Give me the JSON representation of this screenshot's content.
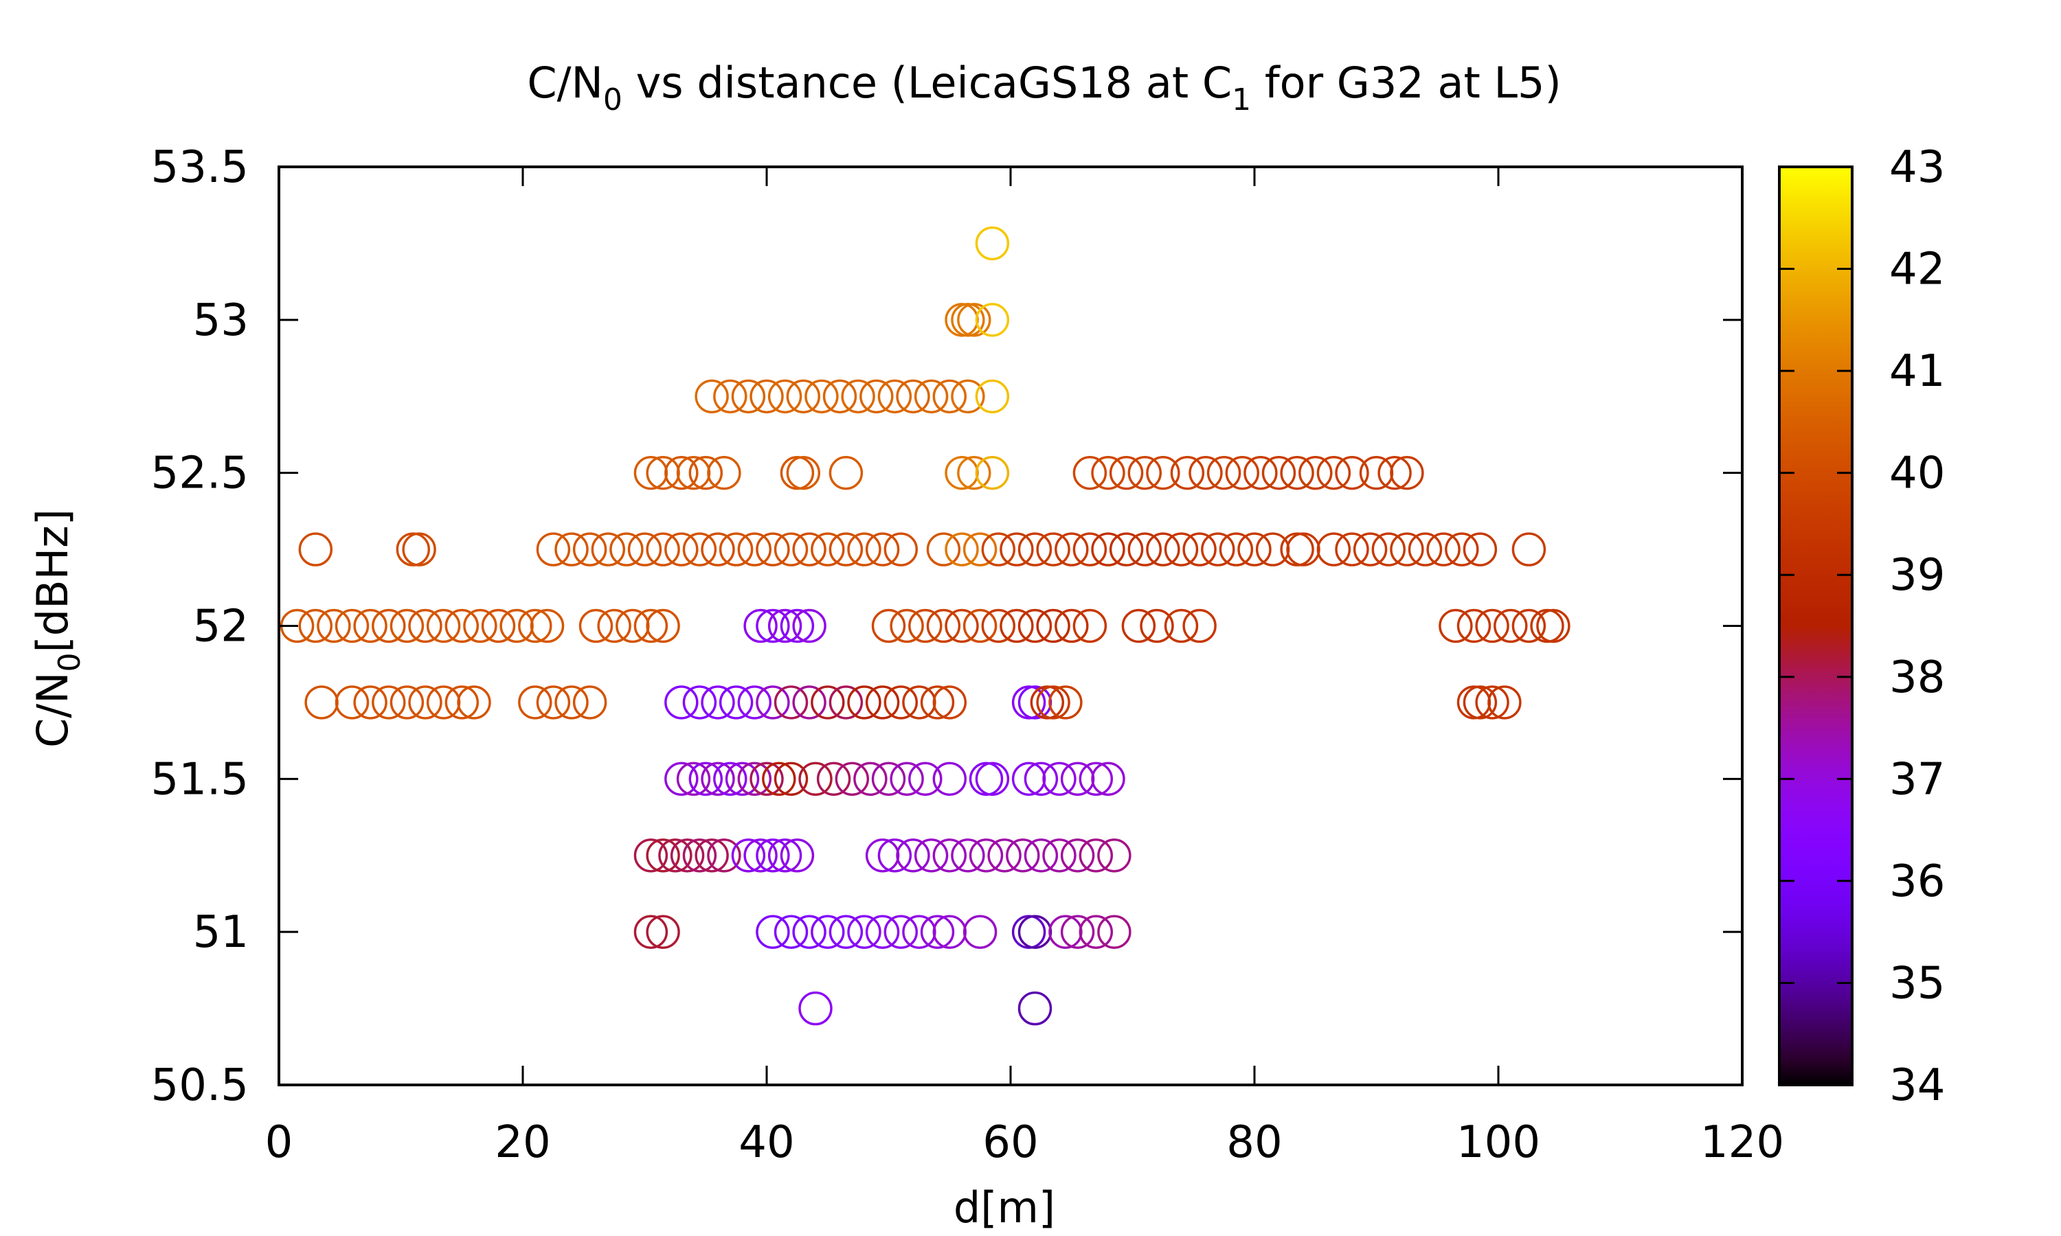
{
  "chart_data": {
    "type": "scatter",
    "title_parts": {
      "a": "C/N",
      "a_sub": "0",
      "b": " vs distance (LeicaGS18 at C",
      "b_sub": "1",
      "c": " for G32 at L5)"
    },
    "xlabel": "d[m]",
    "ylabel_parts": {
      "a": "C/N",
      "a_sub": "0",
      "b": "[dBHz]"
    },
    "xlim": [
      0,
      120
    ],
    "ylim": [
      50.5,
      53.5
    ],
    "xticks": [
      "0",
      "20",
      "40",
      "60",
      "80",
      "100",
      "120"
    ],
    "yticks": [
      "50.5",
      "51",
      "51.5",
      "52",
      "52.5",
      "53",
      "53.5"
    ],
    "colorbar": {
      "min": 34,
      "max": 43,
      "ticks": [
        "34",
        "35",
        "36",
        "37",
        "38",
        "39",
        "40",
        "41",
        "42",
        "43"
      ]
    },
    "colormap": "gnuplot-default",
    "marker": "open-circle",
    "grid": false,
    "legend": "none",
    "clusters": [
      {
        "y": 53.25,
        "x": [
          58.5
        ],
        "c": [
          42.3
        ]
      },
      {
        "y": 53.0,
        "x": [
          56.0,
          56.5,
          57.0,
          58.5
        ],
        "c": [
          41.0,
          41.0,
          41.0,
          42.3
        ]
      },
      {
        "y": 52.75,
        "x": [
          35.5,
          37.0,
          38.5,
          40.0,
          41.5,
          43.0,
          44.5,
          46.0,
          47.5,
          49.0,
          50.5,
          52.0,
          53.5,
          55.0,
          56.5,
          58.5
        ],
        "c": [
          40.7,
          40.7,
          40.6,
          40.6,
          40.7,
          40.6,
          40.7,
          40.6,
          40.7,
          40.6,
          40.7,
          40.6,
          40.7,
          40.7,
          40.8,
          42.2
        ]
      },
      {
        "y": 52.5,
        "x": [
          30.5,
          31.5,
          33.0,
          34.0,
          35.0,
          36.5,
          42.5,
          43.0,
          46.5,
          56.0,
          57.0,
          58.5,
          66.5,
          68.0,
          69.5,
          71.0,
          72.5,
          74.5,
          76.0,
          77.5,
          79.0,
          80.5,
          82.0,
          83.5,
          85.0,
          86.5,
          88.0,
          90.0,
          91.5,
          92.5
        ],
        "c": [
          40.4,
          40.4,
          40.3,
          40.4,
          40.3,
          40.4,
          40.3,
          40.4,
          40.4,
          41.0,
          41.0,
          42.0,
          39.9,
          39.9,
          39.8,
          39.8,
          39.8,
          39.7,
          39.7,
          39.7,
          39.7,
          39.6,
          39.6,
          39.6,
          39.6,
          39.6,
          39.6,
          39.6,
          39.6,
          39.6
        ]
      },
      {
        "y": 52.25,
        "x": [
          3.0,
          11.0,
          11.5,
          22.5,
          24.0,
          25.5,
          27.0,
          28.5,
          30.0,
          31.5,
          33.0,
          34.5,
          36.0,
          37.5,
          39.0,
          40.5,
          42.0,
          43.5,
          45.0,
          46.5,
          48.0,
          49.5,
          51.0,
          54.5,
          56.0,
          57.5,
          59.0,
          60.5,
          62.0,
          63.5,
          65.0,
          66.5,
          68.0,
          69.5,
          71.0,
          72.5,
          74.0,
          75.5,
          77.0,
          78.5,
          80.0,
          81.5,
          83.5,
          84.0,
          86.5,
          88.0,
          89.5,
          91.0,
          92.5,
          94.0,
          95.5,
          97.0,
          98.5,
          102.5
        ],
        "c": [
          40.0,
          40.0,
          40.0,
          40.3,
          40.3,
          40.3,
          40.3,
          40.3,
          40.2,
          40.2,
          40.2,
          40.2,
          40.1,
          40.2,
          40.2,
          40.1,
          40.2,
          40.1,
          40.2,
          40.1,
          40.2,
          40.1,
          40.1,
          40.3,
          41.0,
          40.9,
          39.8,
          39.6,
          39.6,
          39.6,
          39.5,
          39.5,
          39.2,
          39.2,
          39.3,
          39.3,
          39.4,
          39.4,
          39.5,
          39.5,
          39.5,
          39.5,
          39.5,
          39.5,
          39.5,
          39.5,
          39.5,
          39.5,
          39.5,
          39.5,
          39.5,
          39.5,
          39.5,
          39.6
        ]
      },
      {
        "y": 52.0,
        "x": [
          1.5,
          3.0,
          4.5,
          6.0,
          7.5,
          9.0,
          10.5,
          12.0,
          13.5,
          15.0,
          16.5,
          18.0,
          19.5,
          21.0,
          22.0,
          26.0,
          27.5,
          29.0,
          30.5,
          31.5,
          39.5,
          40.5,
          41.5,
          42.5,
          43.5,
          50.0,
          51.5,
          53.0,
          54.5,
          56.0,
          57.5,
          59.0,
          60.5,
          62.0,
          63.5,
          65.0,
          66.5,
          70.5,
          72.0,
          74.0,
          75.5,
          96.5,
          98.0,
          99.5,
          101.0,
          102.5,
          104.0,
          104.5
        ],
        "c": [
          40.3,
          40.3,
          40.3,
          40.3,
          40.3,
          40.2,
          40.3,
          40.2,
          40.3,
          40.2,
          40.3,
          40.2,
          40.3,
          40.3,
          40.3,
          40.2,
          40.2,
          40.2,
          40.2,
          40.2,
          36.8,
          36.6,
          36.8,
          36.6,
          36.9,
          39.9,
          40.0,
          39.9,
          39.7,
          39.6,
          40.0,
          39.5,
          39.3,
          39.2,
          39.0,
          39.2,
          39.4,
          39.3,
          39.3,
          39.4,
          39.4,
          39.4,
          39.4,
          39.4,
          39.4,
          39.4,
          39.4,
          39.4
        ]
      },
      {
        "y": 51.75,
        "x": [
          3.5,
          6.0,
          7.5,
          9.0,
          10.5,
          12.0,
          13.5,
          15.0,
          16.0,
          21.0,
          22.5,
          24.0,
          25.5,
          33.0,
          34.5,
          36.0,
          37.5,
          39.0,
          40.5,
          42.0,
          43.5,
          45.0,
          46.5,
          48.0,
          49.5,
          51.0,
          52.5,
          54.0,
          55.0,
          61.5,
          62.0,
          63.0,
          63.5,
          64.5,
          98.0,
          98.5,
          99.5,
          100.5
        ],
        "c": [
          40.2,
          40.2,
          40.2,
          40.2,
          40.2,
          40.2,
          40.2,
          40.2,
          40.2,
          40.2,
          40.2,
          40.2,
          40.2,
          36.5,
          36.4,
          36.6,
          36.5,
          36.7,
          37.2,
          38.0,
          37.6,
          38.3,
          38.0,
          38.6,
          38.8,
          39.2,
          39.4,
          39.6,
          39.7,
          36.6,
          36.3,
          39.2,
          39.5,
          39.7,
          39.4,
          39.4,
          39.4,
          39.4
        ]
      },
      {
        "y": 51.5,
        "x": [
          33.0,
          34.0,
          35.0,
          36.0,
          37.0,
          38.0,
          39.0,
          40.0,
          41.0,
          42.0,
          44.0,
          45.5,
          47.0,
          48.5,
          50.0,
          51.5,
          53.0,
          55.0,
          58.0,
          58.5,
          61.5,
          62.5,
          64.0,
          65.5,
          67.0,
          68.0
        ],
        "c": [
          37.0,
          37.3,
          36.8,
          37.2,
          36.7,
          37.0,
          37.5,
          38.0,
          38.5,
          38.4,
          38.2,
          38.0,
          37.8,
          37.6,
          37.5,
          37.3,
          37.1,
          37.0,
          36.6,
          36.7,
          36.7,
          36.8,
          36.9,
          37.0,
          37.0,
          37.1
        ]
      },
      {
        "y": 51.25,
        "x": [
          30.5,
          31.5,
          32.5,
          33.5,
          34.5,
          35.5,
          36.5,
          38.5,
          39.5,
          40.5,
          41.5,
          42.5,
          49.5,
          50.5,
          52.0,
          53.5,
          55.0,
          56.5,
          58.0,
          59.5,
          61.0,
          62.5,
          64.0,
          65.5,
          67.0,
          68.5
        ],
        "c": [
          38.1,
          38.2,
          38.1,
          38.0,
          37.9,
          38.0,
          37.9,
          36.8,
          36.8,
          36.7,
          36.8,
          36.9,
          37.0,
          36.9,
          37.1,
          37.2,
          37.3,
          37.3,
          37.4,
          37.5,
          37.5,
          37.4,
          37.5,
          37.6,
          37.7,
          37.7
        ]
      },
      {
        "y": 51.0,
        "x": [
          30.5,
          31.5,
          40.5,
          42.0,
          43.5,
          45.0,
          46.5,
          48.0,
          49.5,
          51.0,
          52.5,
          54.0,
          55.0,
          57.5,
          61.5,
          62.0,
          64.5,
          65.5,
          67.0,
          68.5
        ],
        "c": [
          38.2,
          38.2,
          36.2,
          36.2,
          36.3,
          36.4,
          36.5,
          36.6,
          36.7,
          36.8,
          36.9,
          37.0,
          37.1,
          37.2,
          35.3,
          35.0,
          37.4,
          37.5,
          37.6,
          37.7
        ]
      },
      {
        "y": 50.75,
        "x": [
          44.0,
          62.0
        ],
        "c": [
          36.7,
          35.1
        ]
      }
    ]
  }
}
